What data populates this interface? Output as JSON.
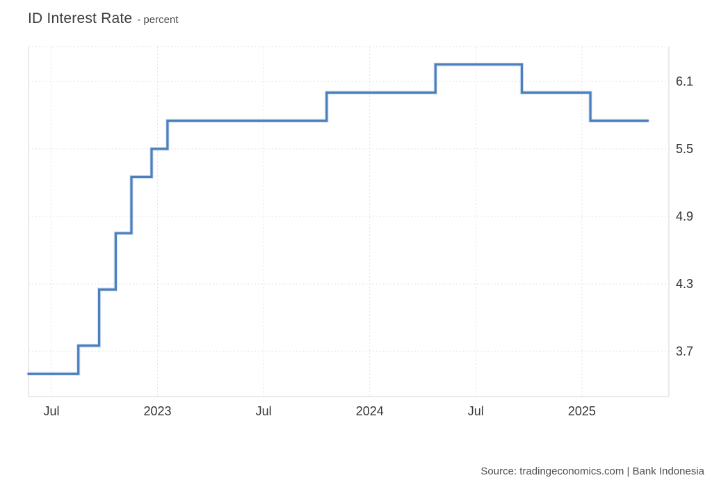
{
  "header": {
    "title": "ID Interest Rate",
    "subtitle": "- percent"
  },
  "footer": {
    "source": "Source: tradingeconomics.com | Bank Indonesia"
  },
  "colors": {
    "line": "#4a7ebd",
    "line_halo": "#a9c3e0",
    "grid": "#e2e2e2",
    "frame": "#d6d6d6",
    "axis_label": "#333333",
    "background": "#ffffff"
  },
  "chart_data": {
    "type": "line",
    "line_style": "step",
    "title": "ID Interest Rate - percent",
    "series_name": "ID Interest Rate",
    "xlabel": "",
    "ylabel": "percent",
    "x_unit": "decimal_year",
    "xlim": [
      2022.392,
      2025.41
    ],
    "ylim": [
      3.298,
      6.409
    ],
    "grid": true,
    "legend": false,
    "y_ticks": [
      {
        "value": 6.1,
        "label": "6.1"
      },
      {
        "value": 5.5,
        "label": "5.5"
      },
      {
        "value": 4.9,
        "label": "4.9"
      },
      {
        "value": 4.3,
        "label": "4.3"
      },
      {
        "value": 3.7,
        "label": "3.7"
      }
    ],
    "x_ticks": [
      {
        "value": 2022.5,
        "label": "Jul"
      },
      {
        "value": 2023.0,
        "label": "2023"
      },
      {
        "value": 2023.5,
        "label": "Jul"
      },
      {
        "value": 2024.0,
        "label": "2024"
      },
      {
        "value": 2024.5,
        "label": "Jul"
      },
      {
        "value": 2025.0,
        "label": "2025"
      }
    ],
    "points": [
      [
        2022.392,
        3.5
      ],
      [
        2022.627,
        3.5
      ],
      [
        2022.627,
        3.75
      ],
      [
        2022.725,
        3.75
      ],
      [
        2022.725,
        4.25
      ],
      [
        2022.803,
        4.25
      ],
      [
        2022.803,
        4.75
      ],
      [
        2022.877,
        4.75
      ],
      [
        2022.877,
        5.25
      ],
      [
        2022.972,
        5.25
      ],
      [
        2022.972,
        5.5
      ],
      [
        2023.047,
        5.5
      ],
      [
        2023.047,
        5.75
      ],
      [
        2023.797,
        5.75
      ],
      [
        2023.797,
        6.0
      ],
      [
        2024.31,
        6.0
      ],
      [
        2024.31,
        6.25
      ],
      [
        2024.717,
        6.25
      ],
      [
        2024.717,
        6.0
      ],
      [
        2025.04,
        6.0
      ],
      [
        2025.04,
        5.75
      ],
      [
        2025.31,
        5.75
      ]
    ]
  }
}
